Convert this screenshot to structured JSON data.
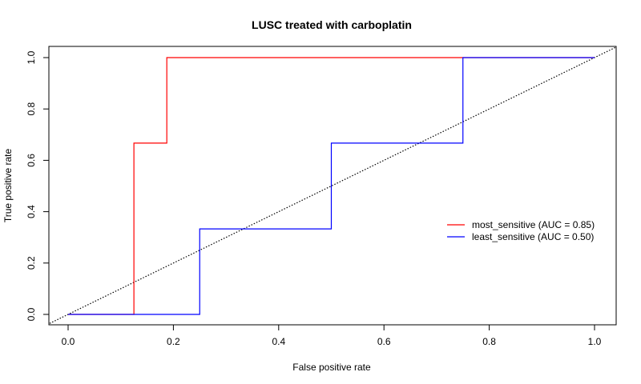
{
  "chart_data": {
    "type": "line",
    "title": "LUSC treated with carboplatin",
    "xlabel": "False positive rate",
    "ylabel": "True positive rate",
    "xlim": [
      0,
      1
    ],
    "ylim": [
      0,
      1
    ],
    "x_ticks": [
      "0.0",
      "0.2",
      "0.4",
      "0.6",
      "0.8",
      "1.0"
    ],
    "y_ticks": [
      "0.0",
      "0.2",
      "0.4",
      "0.6",
      "0.8",
      "1.0"
    ],
    "grid": false,
    "legend_position": "right",
    "series": [
      {
        "name": "most_sensitive (AUC = 0.85)",
        "color": "#ff0000",
        "points": [
          [
            0,
            0
          ],
          [
            0.125,
            0
          ],
          [
            0.125,
            0.667
          ],
          [
            0.1875,
            0.667
          ],
          [
            0.1875,
            1
          ],
          [
            1,
            1
          ]
        ]
      },
      {
        "name": "least_sensitive (AUC = 0.50)",
        "color": "#0000ff",
        "points": [
          [
            0,
            0
          ],
          [
            0.25,
            0
          ],
          [
            0.25,
            0.333
          ],
          [
            0.5,
            0.333
          ],
          [
            0.5,
            0.667
          ],
          [
            0.75,
            0.667
          ],
          [
            0.75,
            1
          ],
          [
            1,
            1
          ]
        ]
      }
    ],
    "reference_line": {
      "points": [
        [
          0,
          0
        ],
        [
          1,
          1
        ]
      ],
      "style": "dotted",
      "color": "#000000"
    }
  }
}
